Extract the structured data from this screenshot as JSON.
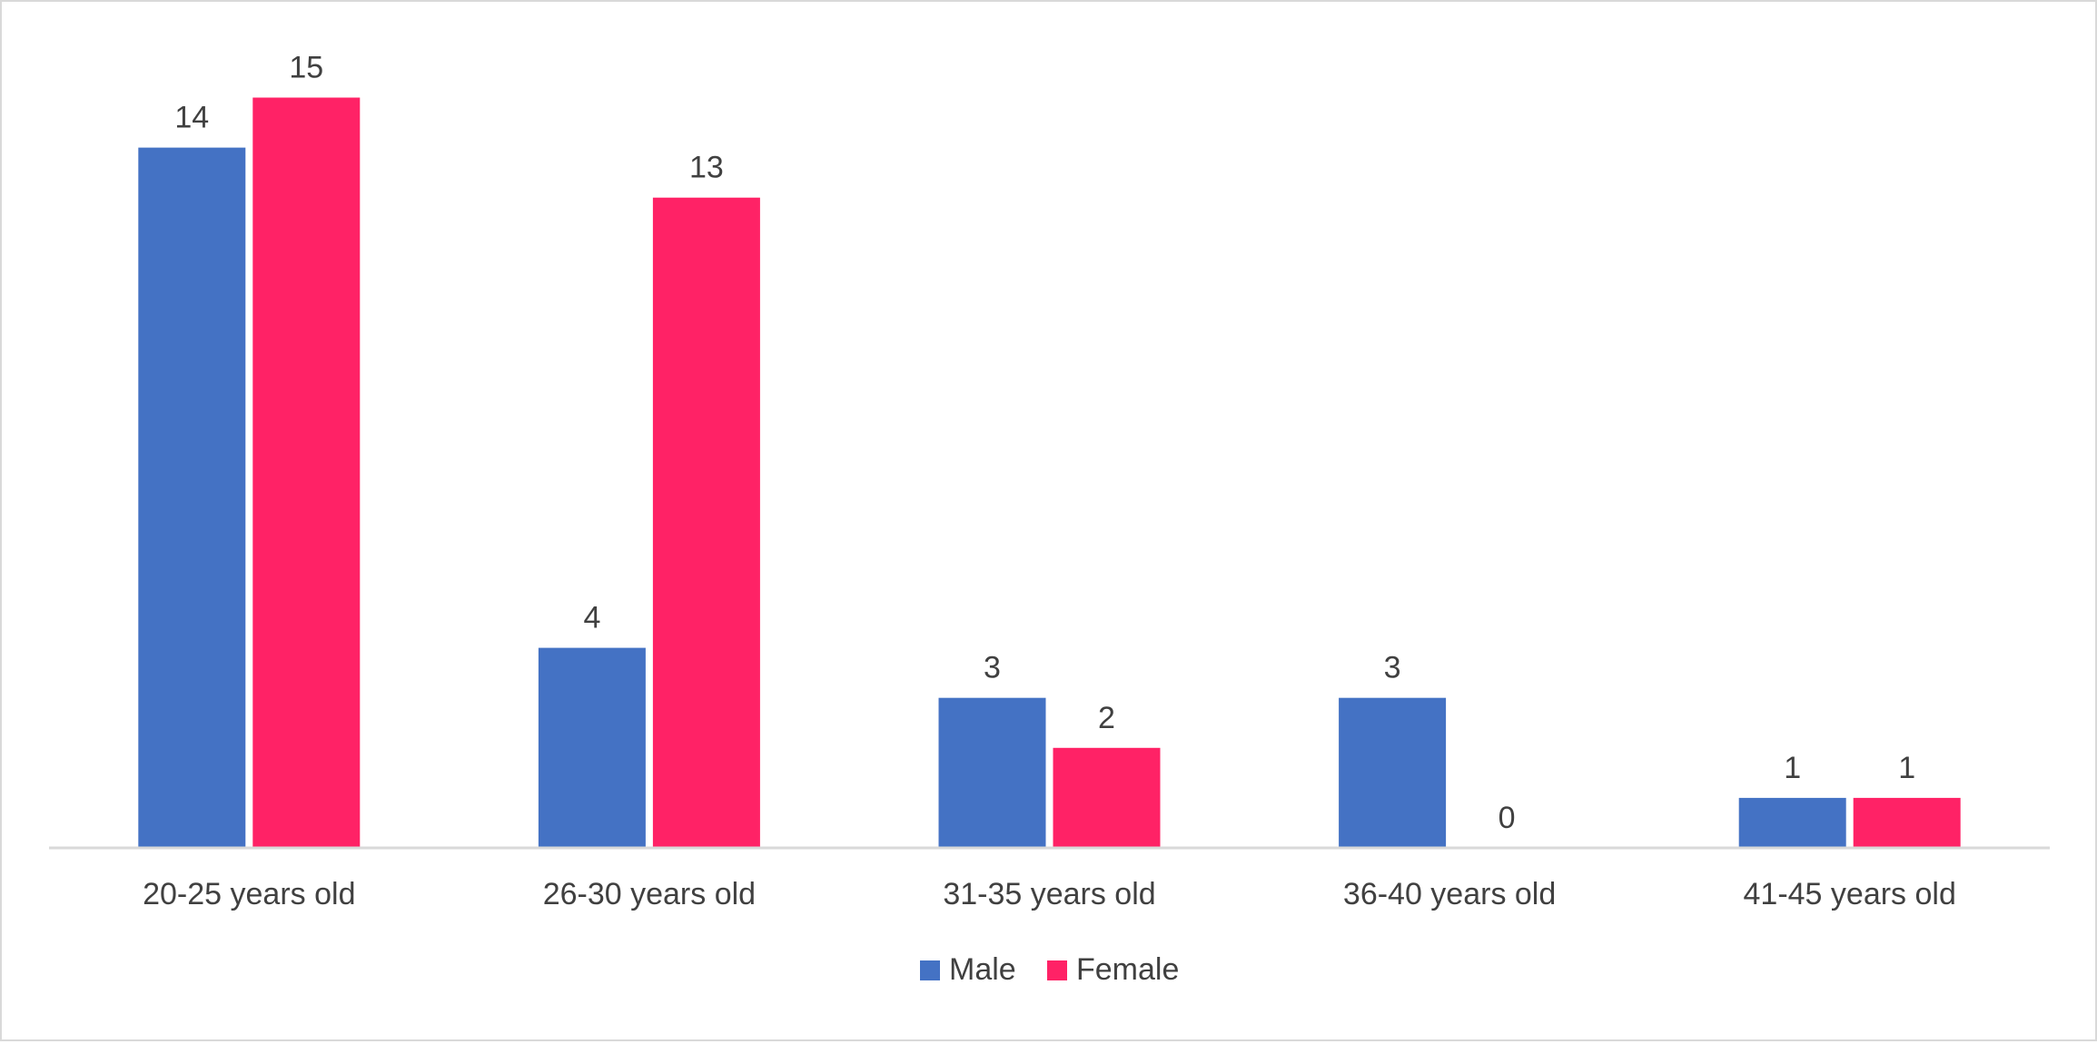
{
  "chart_data": {
    "type": "bar",
    "categories": [
      "20-25 years old",
      "26-30 years old",
      "31-35 years old",
      "36-40 years old",
      "41-45 years old"
    ],
    "series": [
      {
        "name": "Male",
        "values": [
          14,
          4,
          3,
          3,
          1
        ],
        "color": "#4472C4"
      },
      {
        "name": "Female",
        "values": [
          15,
          13,
          2,
          0,
          1
        ],
        "color": "#FF2266"
      }
    ],
    "ylim": [
      0,
      16
    ],
    "grid": false,
    "legend_position": "bottom",
    "axis_color": "#d9d9d9",
    "label_color": "#404040"
  }
}
